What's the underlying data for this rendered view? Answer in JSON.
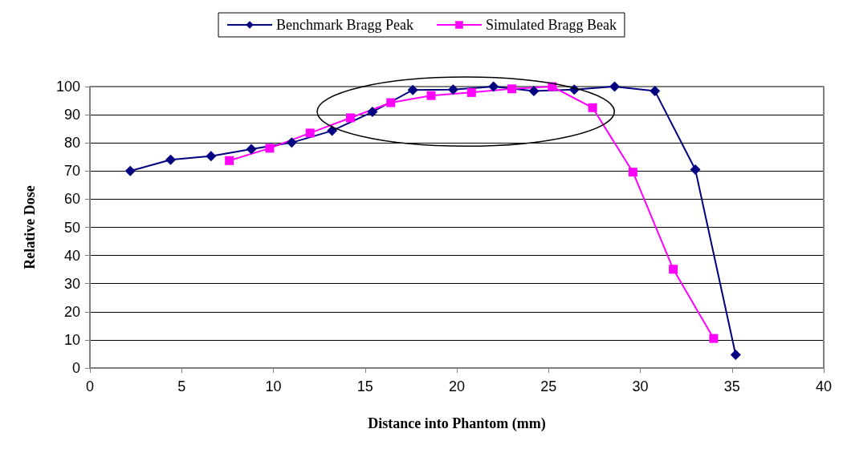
{
  "chart_data": {
    "type": "line",
    "xlabel": "Distance into Phantom (mm)",
    "ylabel": "Relative Dose",
    "xlim": [
      0,
      40
    ],
    "xticks": [
      0,
      5,
      10,
      15,
      20,
      25,
      30,
      35,
      40
    ],
    "ylim": [
      0,
      100
    ],
    "yticks": [
      0,
      10,
      20,
      30,
      40,
      50,
      60,
      70,
      80,
      90,
      100
    ],
    "grid": "y",
    "legend": "top",
    "series": [
      {
        "name": "Benchmark Bragg Peak",
        "color": "#000080",
        "marker": "diamond",
        "x": [
          2.2,
          4.4,
          6.6,
          8.8,
          11.0,
          13.2,
          15.4,
          17.6,
          19.8,
          22.0,
          24.2,
          26.4,
          28.6,
          30.8,
          33.0,
          35.2
        ],
        "values": [
          70,
          74,
          75.3,
          77.8,
          80.1,
          84.3,
          91,
          98.8,
          98.9,
          100,
          98.4,
          98.9,
          100,
          98.4,
          70.5,
          4.7
        ]
      },
      {
        "name": "Simulated Bragg Beak",
        "color": "#ff00ff",
        "marker": "square",
        "x": [
          7.6,
          9.8,
          12.0,
          14.2,
          16.4,
          18.6,
          20.8,
          23.0,
          25.2,
          27.4,
          29.6,
          31.8,
          34.0
        ],
        "values": [
          73.7,
          78.1,
          83.5,
          88.9,
          94.3,
          96.8,
          97.9,
          99.2,
          100,
          92.5,
          69.6,
          35.1,
          10.5
        ]
      }
    ]
  }
}
